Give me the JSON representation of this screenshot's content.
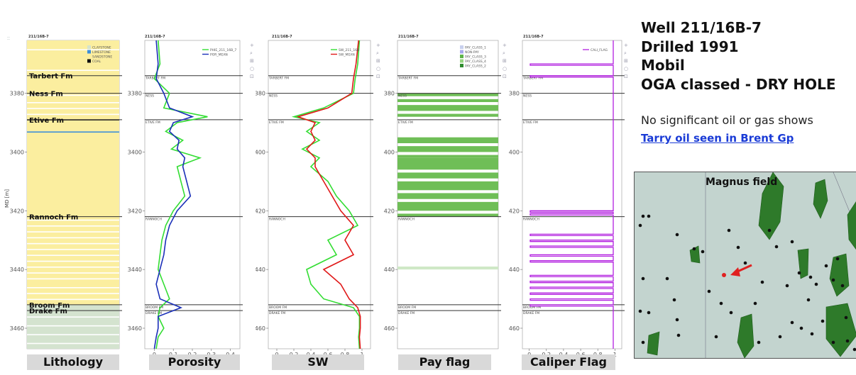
{
  "well_label": "211/16B-7",
  "chart_data": [
    {
      "type": "area",
      "track": "Lithology",
      "ylabel": "MD [m]",
      "ylim": [
        3362,
        3467
      ],
      "yticks": [
        3380,
        3400,
        3420,
        3440,
        3460
      ],
      "legend": [
        {
          "name": "CLAYSTONE",
          "color": "#d4e3cf"
        },
        {
          "name": "LIMESTONE",
          "color": "#3e8fd8"
        },
        {
          "name": "SANDSTONE",
          "color": "#fbee9f"
        },
        {
          "name": "COAL",
          "color": "#111111"
        }
      ],
      "formations": [
        {
          "name": "Tarbert Fm",
          "top": 3374
        },
        {
          "name": "Ness Fm",
          "top": 3380
        },
        {
          "name": "Etive Fm",
          "top": 3389
        },
        {
          "name": "Rannoch Fm",
          "top": 3422
        },
        {
          "name": "Broom Fm",
          "top": 3452
        },
        {
          "name": "Drake Fm",
          "top": 3454
        }
      ]
    },
    {
      "type": "line",
      "track": "Porosity",
      "xlim": [
        -0.05,
        0.45
      ],
      "xticks": [
        0,
        0.1,
        0.2,
        0.3,
        0.4
      ],
      "series": [
        {
          "name": "PHIE_211_16B_7",
          "color": "#33dd33",
          "depth": [
            3362,
            3370,
            3375,
            3380,
            3385,
            3388,
            3390,
            3393,
            3396,
            3399,
            3402,
            3405,
            3410,
            3415,
            3420,
            3425,
            3430,
            3435,
            3440,
            3445,
            3450,
            3453,
            3456,
            3460,
            3463,
            3467
          ],
          "values": [
            0.02,
            0.03,
            0.0,
            0.08,
            0.05,
            0.28,
            0.12,
            0.06,
            0.15,
            0.09,
            0.24,
            0.12,
            0.14,
            0.16,
            0.1,
            0.06,
            0.04,
            0.03,
            0.02,
            0.05,
            0.08,
            0.03,
            0.02,
            0.05,
            0.02,
            0.01
          ]
        },
        {
          "name": "POR_MEAN",
          "color": "#1a2fb8",
          "depth": [
            3362,
            3370,
            3375,
            3380,
            3385,
            3388,
            3390,
            3393,
            3396,
            3399,
            3402,
            3405,
            3410,
            3415,
            3420,
            3425,
            3430,
            3435,
            3440,
            3445,
            3450,
            3453,
            3456,
            3460,
            3463,
            3467
          ],
          "values": [
            0.01,
            0.02,
            0.01,
            0.05,
            0.08,
            0.2,
            0.1,
            0.08,
            0.13,
            0.12,
            0.16,
            0.15,
            0.17,
            0.19,
            0.12,
            0.08,
            0.06,
            0.05,
            0.03,
            0.01,
            0.03,
            0.14,
            0.02,
            0.02,
            0.01,
            0.0
          ]
        }
      ]
    },
    {
      "type": "line",
      "track": "SW",
      "xlim": [
        -0.1,
        1.1
      ],
      "xticks": [
        0,
        0.2,
        0.4,
        0.6,
        0.8,
        1
      ],
      "series": [
        {
          "name": "SW_211_16B",
          "color": "#33dd33",
          "depth": [
            3362,
            3370,
            3375,
            3380,
            3385,
            3388,
            3390,
            3393,
            3396,
            3399,
            3402,
            3405,
            3410,
            3415,
            3420,
            3425,
            3430,
            3435,
            3440,
            3445,
            3450,
            3453,
            3456,
            3460,
            3463,
            3467
          ],
          "values": [
            0.97,
            0.95,
            0.92,
            0.9,
            0.55,
            0.2,
            0.5,
            0.35,
            0.5,
            0.3,
            0.5,
            0.4,
            0.6,
            0.7,
            0.85,
            0.95,
            0.6,
            0.7,
            0.35,
            0.4,
            0.55,
            0.9,
            0.97,
            0.97,
            0.96,
            0.97
          ]
        },
        {
          "name": "SW_MEAN",
          "color": "#e01818",
          "depth": [
            3362,
            3370,
            3375,
            3380,
            3385,
            3388,
            3390,
            3393,
            3396,
            3399,
            3402,
            3405,
            3410,
            3415,
            3420,
            3425,
            3430,
            3435,
            3440,
            3445,
            3450,
            3453,
            3456,
            3460,
            3463,
            3467
          ],
          "values": [
            0.96,
            0.93,
            0.9,
            0.88,
            0.6,
            0.25,
            0.45,
            0.4,
            0.45,
            0.35,
            0.45,
            0.45,
            0.55,
            0.65,
            0.75,
            0.9,
            0.8,
            0.9,
            0.55,
            0.75,
            0.85,
            0.95,
            0.98,
            0.98,
            0.97,
            0.98
          ]
        }
      ]
    },
    {
      "type": "area",
      "track": "Pay flag",
      "legend": [
        {
          "name": "PAY_CLASS_1",
          "color": "#c8d0ee"
        },
        {
          "name": "NON-PAY",
          "color": "#a7a8ec"
        },
        {
          "name": "PAY_CLASS_3",
          "color": "#5db348"
        },
        {
          "name": "PAY_CLASS_4",
          "color": "#96d47f"
        },
        {
          "name": "PAY_CLASS_2",
          "color": "#2d8a2d"
        }
      ],
      "intervals": [
        [
          3380,
          3381
        ],
        [
          3382,
          3383
        ],
        [
          3384,
          3386
        ],
        [
          3387,
          3388
        ],
        [
          3395,
          3397
        ],
        [
          3398,
          3400
        ],
        [
          3401,
          3402
        ],
        [
          3402,
          3406
        ],
        [
          3407,
          3409
        ],
        [
          3410,
          3413
        ],
        [
          3414,
          3416
        ],
        [
          3417,
          3420
        ],
        [
          3421,
          3422
        ],
        [
          3439,
          3440
        ]
      ]
    },
    {
      "type": "line",
      "track": "Caliper Flag",
      "xticks": [
        0,
        0.2,
        0.4,
        0.6,
        0.8,
        1
      ],
      "series": [
        {
          "name": "CALI_FLAG",
          "color": "#b21fe0"
        }
      ],
      "spikes": [
        3370,
        3374,
        3420,
        3421,
        3428,
        3430,
        3432,
        3435,
        3437,
        3442,
        3444,
        3446,
        3448,
        3450,
        3452
      ]
    }
  ],
  "info": {
    "title1": "Well 211/16B-7",
    "title2": "Drilled 1991",
    "title3": "Mobil",
    "title4": "OGA classed - DRY HOLE",
    "note": "No significant oil or gas shows",
    "link": "Tarry oil seen in Brent Gp",
    "map_title": "Magnus field"
  },
  "captions": {
    "lith": "Lithology",
    "por": "Porosity",
    "sw": "SW",
    "pay": "Pay flag",
    "cal": "Caliper Flag"
  },
  "markers": {
    "coal_label": "COAL",
    "tarbert_upper": "TARBERT FM",
    "ness_upper": "NESS",
    "etive_upper": "ETIVE FM",
    "rannoch_upper": "RANNOCH",
    "broom_upper": "BROOM FM",
    "drake_upper": "DRAKE FM"
  }
}
